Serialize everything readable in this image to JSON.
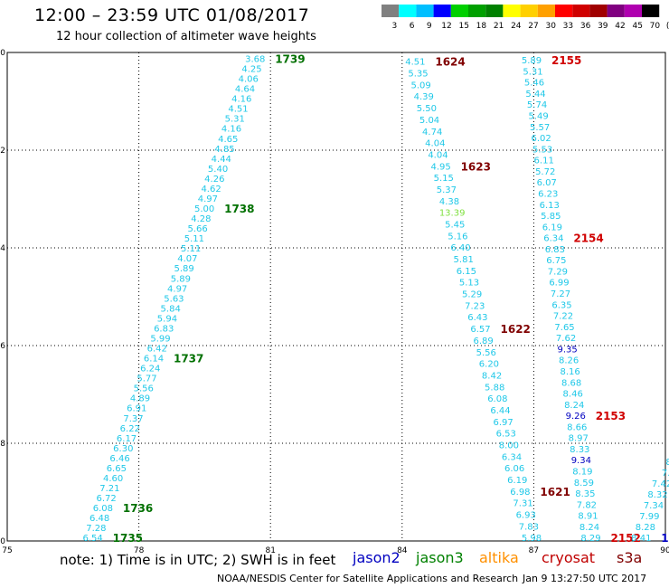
{
  "header": {
    "title": "12:00 – 23:59 UTC 01/08/2017",
    "subtitle": "12 hour collection of altimeter wave heights"
  },
  "color_scale": {
    "labels": [
      "3",
      "6",
      "9",
      "12",
      "15",
      "18",
      "21",
      "24",
      "27",
      "30",
      "33",
      "36",
      "39",
      "42",
      "45",
      "70",
      "(ft)"
    ],
    "colors": [
      "#808080",
      "#00ffff",
      "#00bfff",
      "#0000ff",
      "#00d000",
      "#00a000",
      "#008000",
      "#ffff00",
      "#ffd000",
      "#ffa000",
      "#ff0000",
      "#d00000",
      "#a00000",
      "#800080",
      "#b000b0",
      "#000000"
    ]
  },
  "map": {
    "lon_labels": [
      "75",
      "78",
      "81",
      "84",
      "87",
      "90"
    ],
    "lat_labels": [
      "0",
      "-2",
      "-4",
      "-6",
      "-8",
      "-10"
    ],
    "lon_range": [
      75,
      90
    ],
    "lat_range": [
      0,
      -10
    ],
    "gridlines": true
  },
  "tracks": [
    {
      "satellite": "jason3",
      "start": [
        80.65,
        -0.12
      ],
      "end": [
        76.95,
        -9.93
      ],
      "color": "#20c8e8",
      "values": [
        "3.68",
        "4.25",
        "4.06",
        "4.64",
        "4.16",
        "4.51",
        "5.31",
        "4.16",
        "4.65",
        "4.85",
        "4.44",
        "5.40",
        "4.26",
        "4.62",
        "4.97",
        "5.00",
        "4.28",
        "5.66",
        "5.11",
        "5.11",
        "4.07",
        "5.89",
        "5.89",
        "4.97",
        "5.63",
        "5.84",
        "5.94",
        "6.83",
        "5.99",
        "6.42",
        "6.14",
        "6.24",
        "5.77",
        "5.56",
        "4.89",
        "6.91",
        "7.37",
        "6.22",
        "6.17",
        "6.30",
        "6.46",
        "6.65",
        "4.60",
        "7.21",
        "6.72",
        "6.08",
        "6.48",
        "7.28",
        "6.54"
      ],
      "highlights": [],
      "time_labels": [
        {
          "text": "1739",
          "at": 0,
          "color": "#007000"
        },
        {
          "text": "1738",
          "at": 15,
          "color": "#007000"
        },
        {
          "text": "1737",
          "at": 30,
          "color": "#007000"
        },
        {
          "text": "1736",
          "at": 45,
          "color": "#007000"
        },
        {
          "text": "1735",
          "at": 48,
          "color": "#007000"
        }
      ]
    },
    {
      "satellite": "cryosat",
      "start": [
        84.3,
        -0.18
      ],
      "end": [
        86.95,
        -9.93
      ],
      "color": "#20c8e8",
      "values": [
        "4.51",
        "5.35",
        "5.09",
        "4.39",
        "5.50",
        "5.04",
        "4.74",
        "4.04",
        "4.04",
        "4.95",
        "5.15",
        "5.37",
        "4.38",
        "13.39",
        "5.45",
        "5.16",
        "6.40",
        "5.81",
        "6.15",
        "5.13",
        "5.29",
        "7.23",
        "6.43",
        "6.57",
        "6.89",
        "5.56",
        "6.20",
        "8.42",
        "5.88",
        "6.08",
        "6.44",
        "6.97",
        "6.53",
        "8.00",
        "6.34",
        "6.06",
        "6.19",
        "6.98",
        "7.31",
        "6.93",
        "7.83",
        "5.98"
      ],
      "highlights": [
        {
          "at": 13,
          "color": "#80e040"
        }
      ],
      "time_labels": [
        {
          "text": "1624",
          "at": 0,
          "color": "#800000"
        },
        {
          "text": "1623",
          "at": 9,
          "color": "#800000"
        },
        {
          "text": "1622",
          "at": 23,
          "color": "#800000"
        },
        {
          "text": "1621",
          "at": 37,
          "color": "#800000"
        }
      ]
    },
    {
      "satellite": "s3a",
      "start": [
        86.95,
        -0.15
      ],
      "end": [
        88.3,
        -9.93
      ],
      "color": "#20c8e8",
      "values": [
        "5.89",
        "5.31",
        "5.46",
        "5.44",
        "5.74",
        "5.49",
        "5.57",
        "6.02",
        "5.53",
        "6.11",
        "5.72",
        "6.07",
        "6.23",
        "6.13",
        "5.85",
        "6.19",
        "6.34",
        "6.83",
        "6.75",
        "7.29",
        "6.99",
        "7.27",
        "6.35",
        "7.22",
        "7.65",
        "7.62",
        "9.35",
        "8.26",
        "8.16",
        "8.68",
        "8.46",
        "8.24",
        "9.26",
        "8.66",
        "8.97",
        "8.33",
        "9.34",
        "8.19",
        "8.59",
        "8.35",
        "7.82",
        "8.91",
        "8.24",
        "8.29"
      ],
      "highlights": [
        {
          "at": 26,
          "color": "#0000c0"
        },
        {
          "at": 32,
          "color": "#0000c0"
        },
        {
          "at": 36,
          "color": "#0000c0"
        }
      ],
      "time_labels": [
        {
          "text": "2155",
          "at": 0,
          "color": "#d00000"
        },
        {
          "text": "2154",
          "at": 16,
          "color": "#d00000"
        },
        {
          "text": "2153",
          "at": 32,
          "color": "#d00000"
        },
        {
          "text": "2152",
          "at": 43,
          "color": "#d00000"
        }
      ]
    },
    {
      "satellite": "s3a",
      "start": [
        90.2,
        -8.15
      ],
      "end": [
        89.45,
        -9.93
      ],
      "color": "#20c8e8",
      "values": [
        "8",
        "8.",
        "7.",
        "7.42",
        "8.32",
        "7.34",
        "7.99",
        "8.28",
        "8.41"
      ],
      "highlights": [],
      "time_labels": [
        {
          "text": "1",
          "at": 8,
          "color": "#0000c0"
        }
      ]
    }
  ],
  "footer": {
    "note": "note:  1) Time is in UTC;  2) SWH is in feet",
    "satellites": [
      {
        "name": "jason2",
        "color": "#0000c0"
      },
      {
        "name": "jason3",
        "color": "#008000"
      },
      {
        "name": "altika",
        "color": "#ff9000"
      },
      {
        "name": "cryosat",
        "color": "#c00000"
      },
      {
        "name": "s3a",
        "color": "#800000"
      }
    ],
    "credit": "NOAA/NESDIS Center for Satellite Applications and Research",
    "timestamp": "Jan  9 13:27:50 UTC 2017"
  }
}
